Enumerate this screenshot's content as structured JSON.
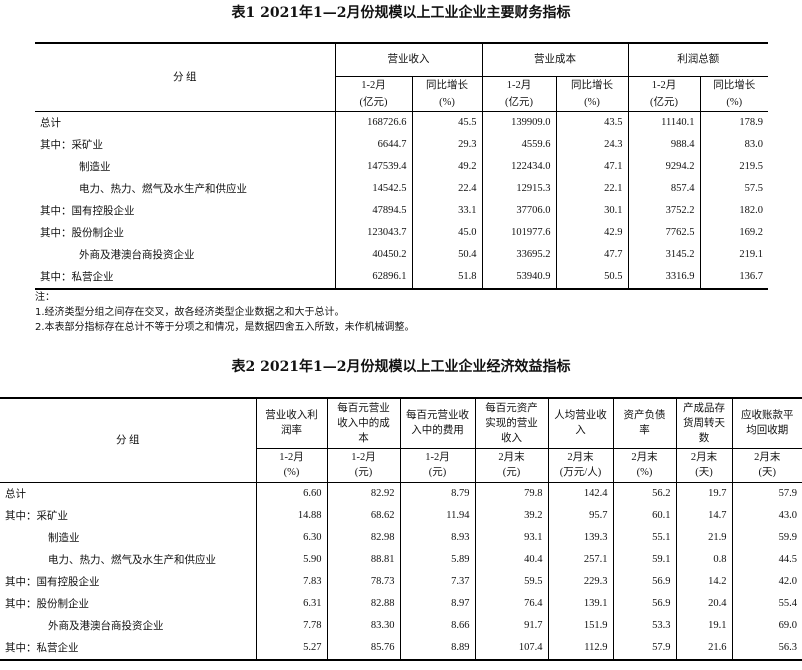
{
  "table1": {
    "title": "表1  2021年1—2月份规模以上工业企业主要财务指标",
    "group_header": "分    组",
    "col_groups": [
      "营业收入",
      "营业成本",
      "利润总额"
    ],
    "sub_headers": [
      [
        "1-2月",
        "(亿元)"
      ],
      [
        "同比增长",
        "(%)"
      ],
      [
        "1-2月",
        "(亿元)"
      ],
      [
        "同比增长",
        "(%)"
      ],
      [
        "1-2月",
        "(亿元)"
      ],
      [
        "同比增长",
        "(%)"
      ]
    ],
    "rows": [
      {
        "label": "总计",
        "indent": 0,
        "v": [
          "168726.6",
          "45.5",
          "139909.0",
          "43.5",
          "11140.1",
          "178.9"
        ]
      },
      {
        "label": "其中：采矿业",
        "indent": 0,
        "v": [
          "6644.7",
          "29.3",
          "4559.6",
          "24.3",
          "988.4",
          "83.0"
        ]
      },
      {
        "label": "制造业",
        "indent": 1,
        "v": [
          "147539.4",
          "49.2",
          "122434.0",
          "47.1",
          "9294.2",
          "219.5"
        ]
      },
      {
        "label": "电力、热力、燃气及水生产和供应业",
        "indent": 1,
        "v": [
          "14542.5",
          "22.4",
          "12915.3",
          "22.1",
          "857.4",
          "57.5"
        ]
      },
      {
        "label": "其中：国有控股企业",
        "indent": 0,
        "v": [
          "47894.5",
          "33.1",
          "37706.0",
          "30.1",
          "3752.2",
          "182.0"
        ]
      },
      {
        "label": "其中：股份制企业",
        "indent": 0,
        "v": [
          "123043.7",
          "45.0",
          "101977.6",
          "42.9",
          "7762.5",
          "169.2"
        ]
      },
      {
        "label": "外商及港澳台商投资企业",
        "indent": 1,
        "v": [
          "40450.2",
          "50.4",
          "33695.2",
          "47.7",
          "3145.2",
          "219.1"
        ]
      },
      {
        "label": "其中：私营企业",
        "indent": 0,
        "v": [
          "62896.1",
          "51.8",
          "53940.9",
          "50.5",
          "3316.9",
          "136.7"
        ]
      }
    ]
  },
  "notes": [
    "注：",
    "1.经济类型分组之间存在交叉，故各经济类型企业数据之和大于总计。",
    "2.本表部分指标存在总计不等于分项之和情况，是数据四舍五入所致，未作机械调整。"
  ],
  "table2": {
    "title": "表2  2021年1—2月份规模以上工业企业经济效益指标",
    "group_header": "分    组",
    "headers": [
      "营业收入利润率",
      "每百元营业收入中的成本",
      "每百元营业收入中的费用",
      "每百元资产实现的营业收入",
      "人均营业收入",
      "资产负债率",
      "产成品存货周转天数",
      "应收账款平均回收期"
    ],
    "sub_headers": [
      [
        "1-2月",
        "(%)"
      ],
      [
        "1-2月",
        "(元)"
      ],
      [
        "1-2月",
        "(元)"
      ],
      [
        "2月末",
        "(元)"
      ],
      [
        "2月末",
        "(万元/人)"
      ],
      [
        "2月末",
        "(%)"
      ],
      [
        "2月末",
        "(天)"
      ],
      [
        "2月末",
        "(天)"
      ]
    ],
    "rows": [
      {
        "label": "总计",
        "indent": 0,
        "v": [
          "6.60",
          "82.92",
          "8.79",
          "79.8",
          "142.4",
          "56.2",
          "19.7",
          "57.9"
        ]
      },
      {
        "label": "其中：采矿业",
        "indent": 0,
        "v": [
          "14.88",
          "68.62",
          "11.94",
          "39.2",
          "95.7",
          "60.1",
          "14.7",
          "43.0"
        ]
      },
      {
        "label": "制造业",
        "indent": 1,
        "v": [
          "6.30",
          "82.98",
          "8.93",
          "93.1",
          "139.3",
          "55.1",
          "21.9",
          "59.9"
        ]
      },
      {
        "label": "电力、热力、燃气及水生产和供应业",
        "indent": 1,
        "v": [
          "5.90",
          "88.81",
          "5.89",
          "40.4",
          "257.1",
          "59.1",
          "0.8",
          "44.5"
        ]
      },
      {
        "label": "其中：国有控股企业",
        "indent": 0,
        "v": [
          "7.83",
          "78.73",
          "7.37",
          "59.5",
          "229.3",
          "56.9",
          "14.2",
          "42.0"
        ]
      },
      {
        "label": "其中：股份制企业",
        "indent": 0,
        "v": [
          "6.31",
          "82.88",
          "8.97",
          "76.4",
          "139.1",
          "56.9",
          "20.4",
          "55.4"
        ]
      },
      {
        "label": "外商及港澳台商投资企业",
        "indent": 1,
        "v": [
          "7.78",
          "83.30",
          "8.66",
          "91.7",
          "151.9",
          "53.3",
          "19.1",
          "69.0"
        ]
      },
      {
        "label": "其中：私营企业",
        "indent": 0,
        "v": [
          "5.27",
          "85.76",
          "8.89",
          "107.4",
          "112.9",
          "57.9",
          "21.6",
          "56.3"
        ]
      }
    ]
  }
}
